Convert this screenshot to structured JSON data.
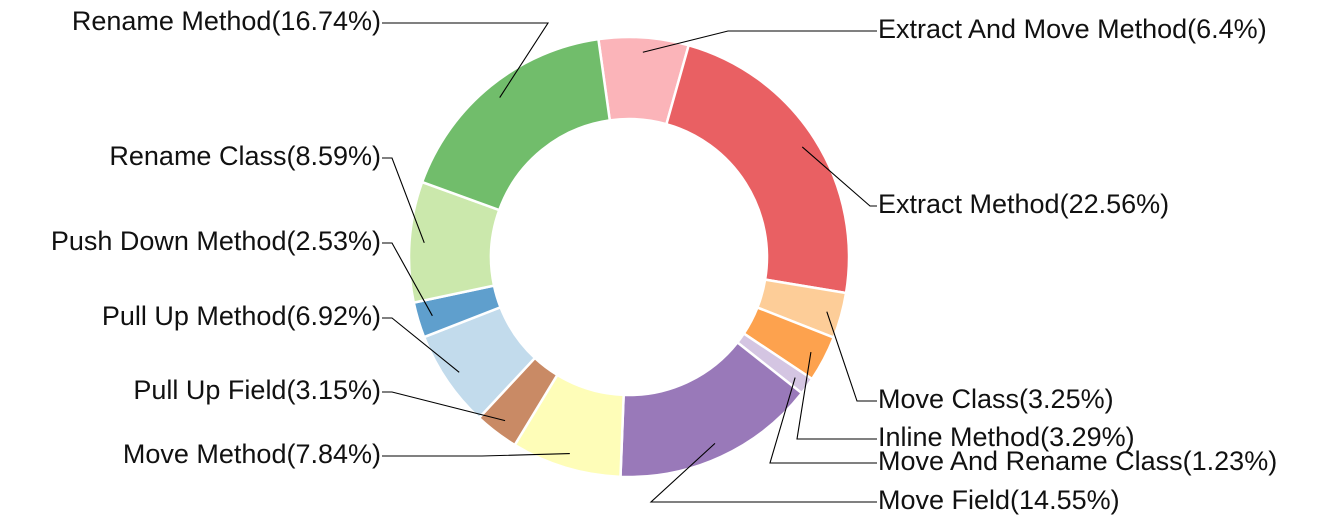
{
  "chart_data": {
    "type": "pie",
    "donut": true,
    "slices": [
      {
        "label": "Extract And Move Method(6.4%)",
        "value": 6.4,
        "color": "#fbb4b9"
      },
      {
        "label": "Extract Method(22.56%)",
        "value": 22.56,
        "color": "#e96063"
      },
      {
        "label": "Move Class(3.25%)",
        "value": 3.25,
        "color": "#fdcd98"
      },
      {
        "label": "Inline Method(3.29%)",
        "value": 3.29,
        "color": "#fda24e"
      },
      {
        "label": "Move And Rename Class(1.23%)",
        "value": 1.23,
        "color": "#d4c5e2"
      },
      {
        "label": "Move Field(14.55%)",
        "value": 14.55,
        "color": "#9979b9"
      },
      {
        "label": "Move Method(7.84%)",
        "value": 7.84,
        "color": "#fefdb8"
      },
      {
        "label": "Pull Up Field(3.15%)",
        "value": 3.15,
        "color": "#c98a65"
      },
      {
        "label": "Pull Up Method(6.92%)",
        "value": 6.92,
        "color": "#c2dbec"
      },
      {
        "label": "Push Down Method(2.53%)",
        "value": 2.53,
        "color": "#5f9fcd"
      },
      {
        "label": "Rename Class(8.59%)",
        "value": 8.59,
        "color": "#cbe8ac"
      },
      {
        "label": "Rename Method(16.74%)",
        "value": 16.74,
        "color": "#71bd6b"
      }
    ]
  }
}
